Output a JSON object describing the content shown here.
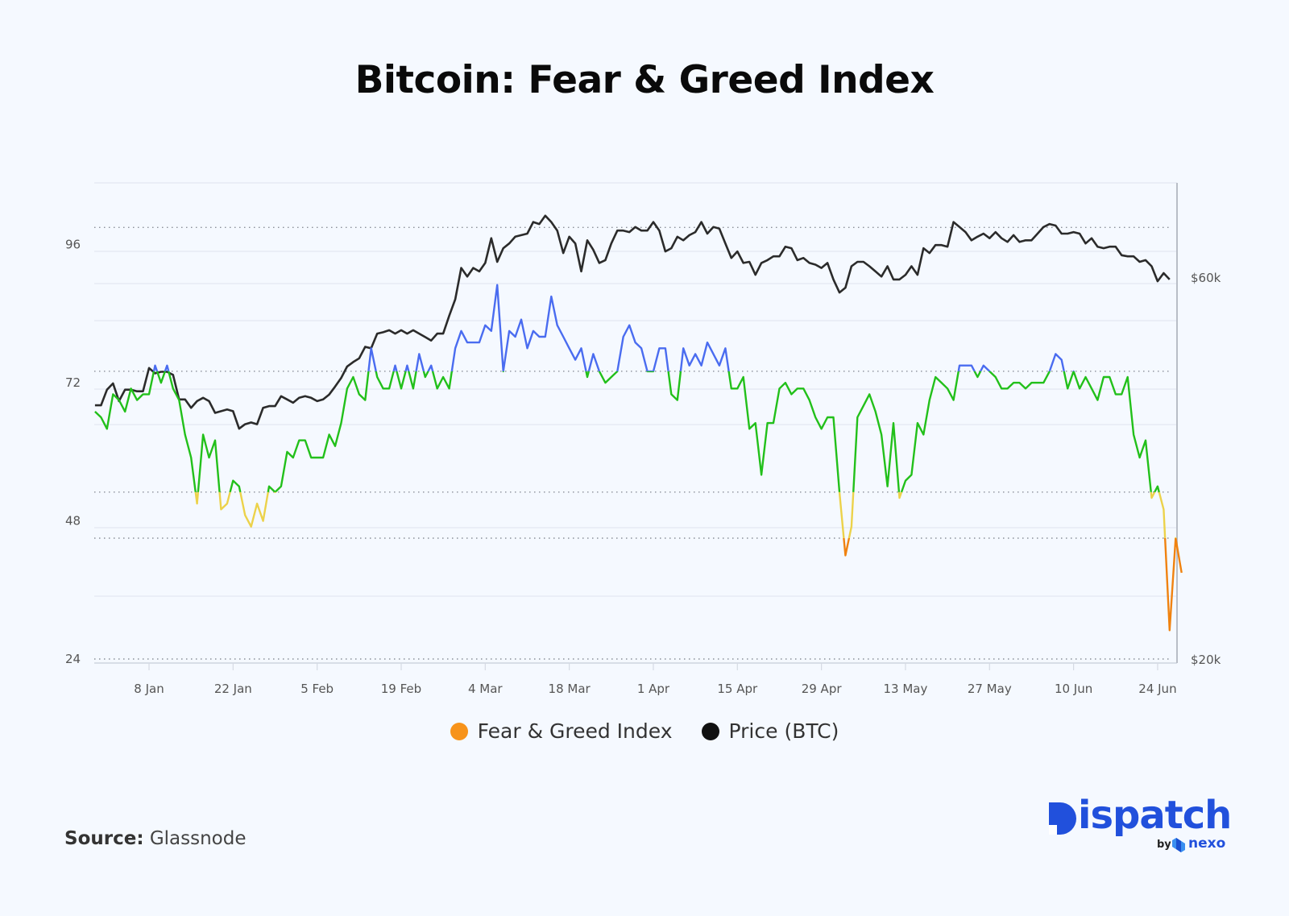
{
  "title": "Bitcoin: Fear & Greed Index",
  "source": {
    "label": "Source:",
    "value": "Glassnode"
  },
  "logo": {
    "name": "Dispatch",
    "by": "by",
    "partner": "nexo",
    "color": "#2150dc"
  },
  "chart_data": {
    "type": "line",
    "title": "Bitcoin: Fear & Greed Index",
    "x_start": "2023-12-30",
    "x_interval": "1 day",
    "x_ticks": [
      "8 Jan",
      "22 Jan",
      "5 Feb",
      "19 Feb",
      "4 Mar",
      "18 Mar",
      "1 Apr",
      "15 Apr",
      "29 Apr",
      "13 May",
      "27 May",
      "10 Jun",
      "24 Jun"
    ],
    "y_left": {
      "ticks": [
        "24",
        "48",
        "72",
        "96"
      ],
      "range": [
        24,
        106
      ]
    },
    "y_right": {
      "ticks": [
        "$20k",
        "$60k"
      ],
      "scale": "log",
      "unit": "USD thousands"
    },
    "threshold_lines": [
      24,
      45,
      53,
      74,
      99
    ],
    "color_bands": [
      {
        "min": 74,
        "color": "#4a6cf0"
      },
      {
        "min": 53,
        "max": 74,
        "color": "#22c01a"
      },
      {
        "min": 45,
        "max": 53,
        "color": "#ecd24a"
      },
      {
        "max": 45,
        "color": "#f0820f"
      }
    ],
    "grid": true,
    "legend_position": "bottom",
    "series": [
      {
        "name": "Fear & Greed Index",
        "axis": "left",
        "legend_color": "#f7931a",
        "values": [
          67,
          66,
          64,
          70,
          69,
          67,
          71,
          69,
          70,
          70,
          75,
          72,
          75,
          71,
          69,
          63,
          59,
          51,
          63,
          59,
          62,
          50,
          51,
          55,
          54,
          49,
          47,
          51,
          48,
          54,
          53,
          54,
          60,
          59,
          62,
          62,
          59,
          59,
          59,
          63,
          61,
          65,
          71,
          73,
          70,
          69,
          78,
          73,
          71,
          71,
          75,
          71,
          75,
          71,
          77,
          73,
          75,
          71,
          73,
          71,
          78,
          81,
          79,
          79,
          79,
          82,
          81,
          89,
          74,
          81,
          80,
          83,
          78,
          81,
          80,
          80,
          87,
          82,
          80,
          78,
          76,
          78,
          73,
          77,
          74,
          72,
          73,
          74,
          80,
          82,
          79,
          78,
          74,
          74,
          78,
          78,
          70,
          69,
          78,
          75,
          77,
          75,
          79,
          77,
          75,
          78,
          71,
          71,
          73,
          64,
          65,
          56,
          65,
          65,
          71,
          72,
          70,
          71,
          71,
          69,
          66,
          64,
          66,
          66,
          53,
          42,
          47,
          66,
          68,
          70,
          67,
          63,
          54,
          65,
          52,
          55,
          56,
          65,
          63,
          69,
          73,
          72,
          71,
          69,
          75,
          75,
          75,
          73,
          75,
          74,
          73,
          71,
          71,
          72,
          72,
          71,
          72,
          72,
          72,
          74,
          77,
          76,
          71,
          74,
          71,
          73,
          71,
          69,
          73,
          73,
          70,
          70,
          73,
          63,
          59,
          62,
          52,
          54,
          50,
          29,
          45,
          39
        ]
      },
      {
        "name": "Price (BTC)",
        "axis": "right",
        "color": "#2b2b2b",
        "legend_color": "#111111",
        "unit": "USD thousands",
        "values": [
          41.5,
          41.5,
          43.4,
          44.2,
          42.0,
          43.4,
          43.4,
          43.2,
          43.2,
          46.2,
          45.5,
          45.7,
          45.7,
          45.3,
          42.2,
          42.2,
          41.2,
          42.0,
          42.4,
          42.0,
          40.6,
          40.8,
          41.0,
          40.8,
          38.8,
          39.3,
          39.5,
          39.3,
          41.2,
          41.4,
          41.4,
          42.6,
          42.2,
          41.8,
          42.4,
          42.6,
          42.4,
          42.0,
          42.2,
          42.8,
          43.8,
          44.9,
          46.4,
          47.0,
          47.5,
          49.1,
          48.9,
          51.0,
          51.2,
          51.5,
          51.0,
          51.5,
          51.0,
          51.5,
          51.0,
          50.5,
          50.0,
          51.0,
          51.0,
          53.7,
          56.3,
          61.6,
          60.1,
          61.6,
          61.0,
          62.5,
          67.1,
          62.7,
          65.2,
          66.1,
          67.4,
          67.7,
          68.0,
          70.3,
          69.9,
          71.6,
          70.3,
          68.6,
          64.3,
          67.4,
          66.1,
          61.0,
          66.7,
          64.9,
          62.5,
          63.0,
          66.1,
          68.6,
          68.6,
          68.3,
          69.3,
          68.6,
          68.6,
          70.3,
          68.6,
          64.6,
          65.2,
          67.4,
          66.7,
          67.7,
          68.3,
          70.3,
          68.0,
          69.3,
          69.0,
          66.1,
          63.4,
          64.6,
          62.5,
          62.7,
          60.4,
          62.5,
          63.0,
          63.7,
          63.7,
          65.5,
          65.2,
          63.0,
          63.4,
          62.5,
          62.2,
          61.6,
          62.5,
          59.6,
          57.4,
          58.2,
          61.9,
          62.7,
          62.7,
          61.9,
          61.0,
          60.1,
          61.9,
          59.6,
          59.6,
          60.4,
          61.9,
          60.4,
          65.2,
          64.3,
          65.8,
          65.8,
          65.5,
          70.3,
          69.3,
          68.3,
          66.7,
          67.4,
          68.0,
          67.1,
          68.3,
          67.1,
          66.4,
          67.7,
          66.4,
          66.7,
          66.7,
          68.0,
          69.3,
          69.9,
          69.6,
          68.0,
          68.0,
          68.3,
          68.0,
          66.1,
          67.1,
          65.5,
          65.2,
          65.5,
          65.5,
          63.9,
          63.7,
          63.7,
          62.7,
          63.0,
          61.9,
          59.3,
          60.7,
          59.6
        ]
      }
    ]
  }
}
